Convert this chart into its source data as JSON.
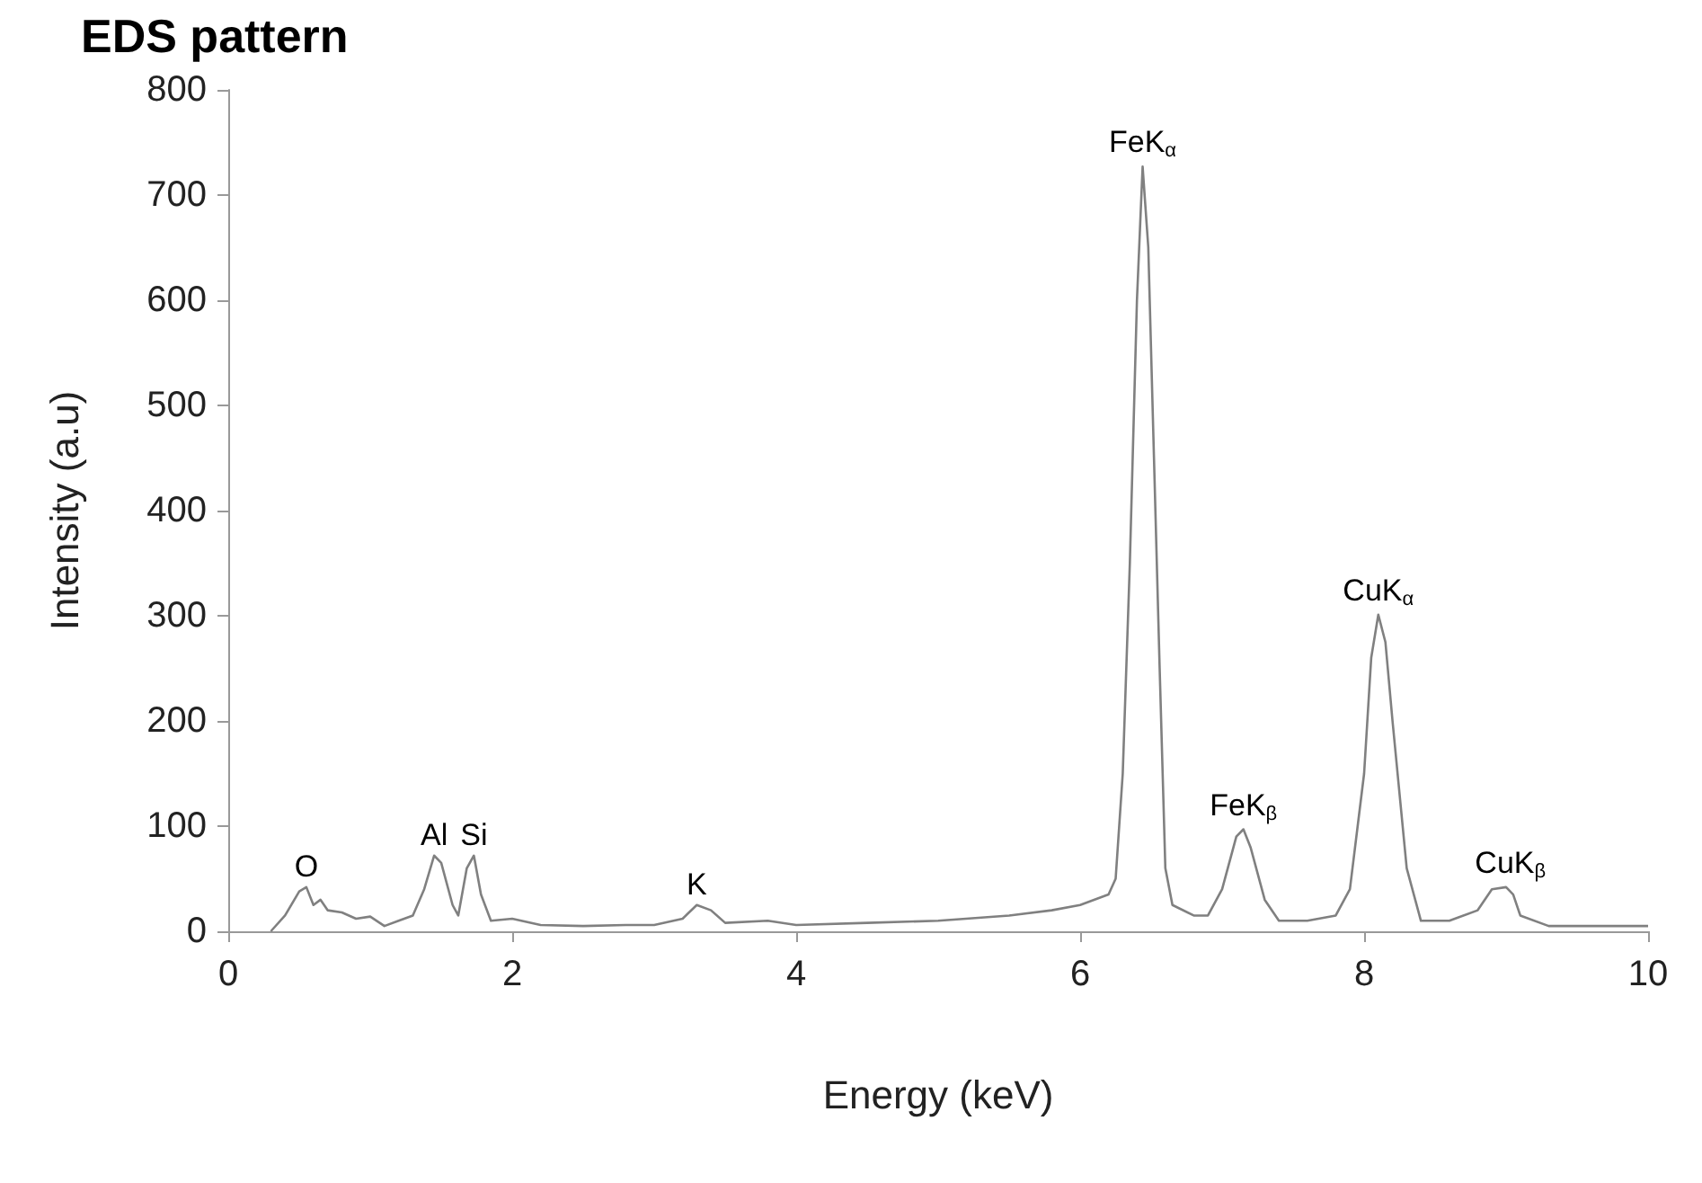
{
  "chart_data": {
    "type": "line",
    "title": "EDS pattern",
    "xlabel": "Energy (keV)",
    "ylabel": "Intensity (a.u)",
    "xlim": [
      0,
      10
    ],
    "xticks": [
      0,
      2,
      4,
      6,
      8,
      10
    ],
    "ylim": [
      0,
      800
    ],
    "yticks": [
      0,
      100,
      200,
      300,
      400,
      500,
      600,
      700,
      800
    ],
    "grid": false,
    "marker": "none",
    "line_style": "solid",
    "series": [
      {
        "color": "#808080",
        "x": [
          0.3,
          0.4,
          0.5,
          0.55,
          0.6,
          0.65,
          0.7,
          0.8,
          0.9,
          1.0,
          1.1,
          1.2,
          1.3,
          1.38,
          1.45,
          1.5,
          1.58,
          1.62,
          1.68,
          1.73,
          1.78,
          1.85,
          2.0,
          2.2,
          2.5,
          2.8,
          3.0,
          3.2,
          3.3,
          3.4,
          3.5,
          3.8,
          4.0,
          4.5,
          5.0,
          5.5,
          5.8,
          6.0,
          6.2,
          6.25,
          6.3,
          6.35,
          6.4,
          6.44,
          6.48,
          6.52,
          6.56,
          6.6,
          6.65,
          6.8,
          6.9,
          7.0,
          7.1,
          7.15,
          7.2,
          7.3,
          7.4,
          7.6,
          7.8,
          7.9,
          8.0,
          8.05,
          8.1,
          8.15,
          8.2,
          8.3,
          8.4,
          8.6,
          8.8,
          8.9,
          9.0,
          9.05,
          9.1,
          9.3,
          9.6,
          10.0
        ],
        "values": [
          0,
          15,
          38,
          42,
          25,
          30,
          20,
          18,
          12,
          14,
          5,
          10,
          15,
          40,
          72,
          65,
          25,
          15,
          60,
          72,
          35,
          10,
          12,
          6,
          5,
          6,
          6,
          12,
          25,
          20,
          8,
          10,
          6,
          8,
          10,
          15,
          20,
          25,
          35,
          50,
          150,
          350,
          600,
          727,
          650,
          450,
          250,
          60,
          25,
          15,
          15,
          40,
          90,
          97,
          80,
          30,
          10,
          10,
          15,
          40,
          150,
          260,
          301,
          275,
          200,
          60,
          10,
          10,
          20,
          40,
          42,
          35,
          15,
          5,
          5,
          5
        ]
      }
    ],
    "annotations": [
      {
        "text": "O",
        "x": 0.55,
        "y": 42
      },
      {
        "text": "Al",
        "x": 1.45,
        "y": 72
      },
      {
        "text": "Si",
        "x": 1.73,
        "y": 72
      },
      {
        "text": "K",
        "x": 3.3,
        "y": 25
      },
      {
        "text": "FeK$_{α}$",
        "x": 6.44,
        "y": 727
      },
      {
        "text": "FeK$_{β}$",
        "x": 7.15,
        "y": 97
      },
      {
        "text": "CuK$_{α}$",
        "x": 8.1,
        "y": 301
      },
      {
        "text": "CuK$_{β}$",
        "x": 9.03,
        "y": 42
      }
    ]
  }
}
